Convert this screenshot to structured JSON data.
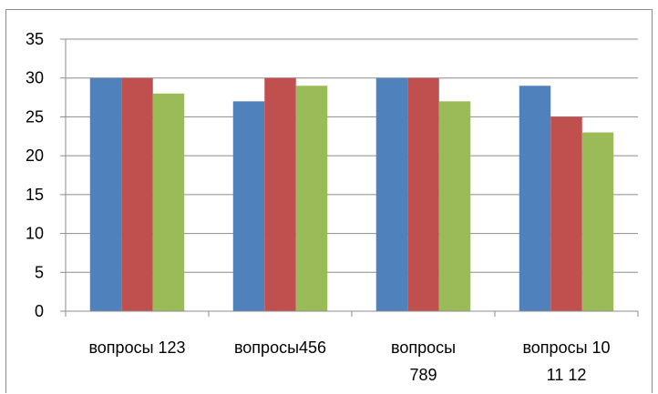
{
  "chart_data": {
    "type": "bar",
    "categories": [
      [
        "вопросы 123"
      ],
      [
        "вопросы456"
      ],
      [
        "вопросы",
        "789"
      ],
      [
        "вопросы 10",
        "11 12"
      ]
    ],
    "series": [
      {
        "color": "#4f81bd",
        "values": [
          30,
          27,
          30,
          29
        ]
      },
      {
        "color": "#c0504d",
        "values": [
          30,
          30,
          30,
          25
        ]
      },
      {
        "color": "#9bbb59",
        "values": [
          28,
          29,
          27,
          23
        ]
      }
    ],
    "ylim": [
      0,
      35
    ],
    "yticks": [
      "0",
      "5",
      "10",
      "15",
      "20",
      "25",
      "30",
      "35"
    ],
    "grid": true,
    "legend": "none"
  }
}
